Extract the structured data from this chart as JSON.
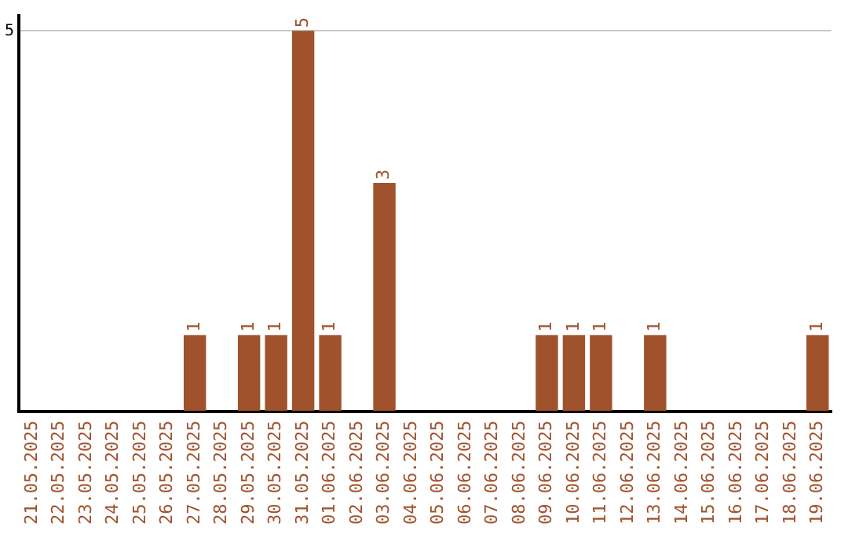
{
  "chart_data": {
    "type": "bar",
    "categories": [
      "21.05.2025",
      "22.05.2025",
      "23.05.2025",
      "24.05.2025",
      "25.05.2025",
      "26.05.2025",
      "27.05.2025",
      "28.05.2025",
      "29.05.2025",
      "30.05.2025",
      "31.05.2025",
      "01.06.2025",
      "02.06.2025",
      "03.06.2025",
      "04.06.2025",
      "05.06.2025",
      "06.06.2025",
      "07.06.2025",
      "08.06.2025",
      "09.06.2025",
      "10.06.2025",
      "11.06.2025",
      "12.06.2025",
      "13.06.2025",
      "14.06.2025",
      "15.06.2025",
      "16.06.2025",
      "17.06.2025",
      "18.06.2025",
      "19.06.2025"
    ],
    "values": [
      0,
      0,
      0,
      0,
      0,
      0,
      1,
      0,
      1,
      1,
      5,
      1,
      0,
      3,
      0,
      0,
      0,
      0,
      0,
      1,
      1,
      1,
      0,
      1,
      0,
      0,
      0,
      0,
      0,
      1
    ],
    "value_labels": [
      null,
      null,
      null,
      null,
      null,
      null,
      "1",
      null,
      "1",
      "1",
      "5",
      "1",
      null,
      "3",
      null,
      null,
      null,
      null,
      null,
      "1",
      "1",
      "1",
      null,
      "1",
      null,
      null,
      null,
      null,
      null,
      "1"
    ],
    "color": "#a0522d",
    "ylim": [
      0,
      5.2
    ],
    "yticks": [
      5
    ],
    "grid": "y",
    "legend": false
  }
}
